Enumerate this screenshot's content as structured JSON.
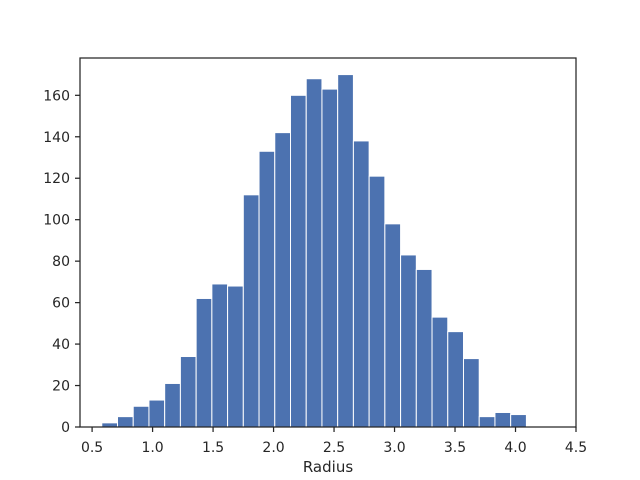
{
  "chart_data": {
    "type": "bar",
    "title": "",
    "xlabel": "Radius",
    "ylabel": "",
    "bar_color": "#4c72b0",
    "edge_color": "#ffffff",
    "axes_color": "#262626",
    "xlim": [
      0.4,
      4.5
    ],
    "ylim": [
      0,
      178
    ],
    "xticks": [
      0.5,
      1.0,
      1.5,
      2.0,
      2.5,
      3.0,
      3.5,
      4.0,
      4.5
    ],
    "xtick_labels": [
      "0.5",
      "1.0",
      "1.5",
      "2.0",
      "2.5",
      "3.0",
      "3.5",
      "4.0",
      "4.5"
    ],
    "yticks": [
      0,
      20,
      40,
      60,
      80,
      100,
      120,
      140,
      160
    ],
    "ytick_labels": [
      "0",
      "20",
      "40",
      "60",
      "80",
      "100",
      "120",
      "140",
      "160"
    ],
    "bins": [
      {
        "x0": 0.58,
        "x1": 0.71,
        "value": 2
      },
      {
        "x0": 0.71,
        "x1": 0.84,
        "value": 5
      },
      {
        "x0": 0.84,
        "x1": 0.97,
        "value": 10
      },
      {
        "x0": 0.97,
        "x1": 1.1,
        "value": 13
      },
      {
        "x0": 1.1,
        "x1": 1.23,
        "value": 21
      },
      {
        "x0": 1.23,
        "x1": 1.36,
        "value": 34
      },
      {
        "x0": 1.36,
        "x1": 1.49,
        "value": 62
      },
      {
        "x0": 1.49,
        "x1": 1.62,
        "value": 69
      },
      {
        "x0": 1.62,
        "x1": 1.75,
        "value": 68
      },
      {
        "x0": 1.75,
        "x1": 1.88,
        "value": 112
      },
      {
        "x0": 1.88,
        "x1": 2.01,
        "value": 133
      },
      {
        "x0": 2.01,
        "x1": 2.14,
        "value": 142
      },
      {
        "x0": 2.14,
        "x1": 2.27,
        "value": 160
      },
      {
        "x0": 2.27,
        "x1": 2.4,
        "value": 168
      },
      {
        "x0": 2.4,
        "x1": 2.53,
        "value": 163
      },
      {
        "x0": 2.53,
        "x1": 2.66,
        "value": 170
      },
      {
        "x0": 2.66,
        "x1": 2.79,
        "value": 138
      },
      {
        "x0": 2.79,
        "x1": 2.92,
        "value": 121
      },
      {
        "x0": 2.92,
        "x1": 3.05,
        "value": 98
      },
      {
        "x0": 3.05,
        "x1": 3.18,
        "value": 83
      },
      {
        "x0": 3.18,
        "x1": 3.31,
        "value": 76
      },
      {
        "x0": 3.31,
        "x1": 3.44,
        "value": 53
      },
      {
        "x0": 3.44,
        "x1": 3.57,
        "value": 46
      },
      {
        "x0": 3.57,
        "x1": 3.7,
        "value": 33
      },
      {
        "x0": 3.7,
        "x1": 3.83,
        "value": 5
      },
      {
        "x0": 3.83,
        "x1": 3.96,
        "value": 7
      },
      {
        "x0": 3.96,
        "x1": 4.09,
        "value": 6
      }
    ]
  }
}
